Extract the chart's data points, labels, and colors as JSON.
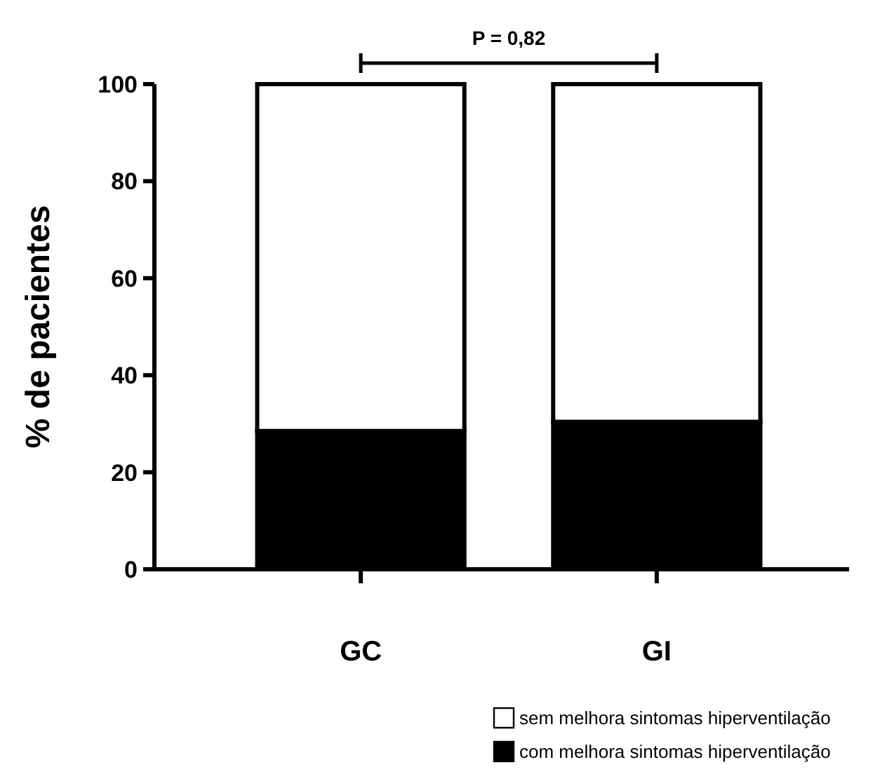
{
  "chart_data": {
    "type": "bar",
    "stacked": true,
    "ylabel": "% de pacientes",
    "categories": [
      "GC",
      "GI"
    ],
    "series": [
      {
        "name": "com melhora sintomas hiperventilação",
        "color": "#000000",
        "values": [
          28.5,
          30.4
        ]
      },
      {
        "name": "sem melhora sintomas hiperventilação",
        "color": "#ffffff",
        "values": [
          71.5,
          69.6
        ]
      }
    ],
    "ylim": [
      0,
      100
    ],
    "yticks": [
      0,
      20,
      40,
      60,
      80,
      100
    ],
    "grid": false,
    "legend": "bottom right",
    "annotations": [
      "P = 0,82"
    ]
  }
}
